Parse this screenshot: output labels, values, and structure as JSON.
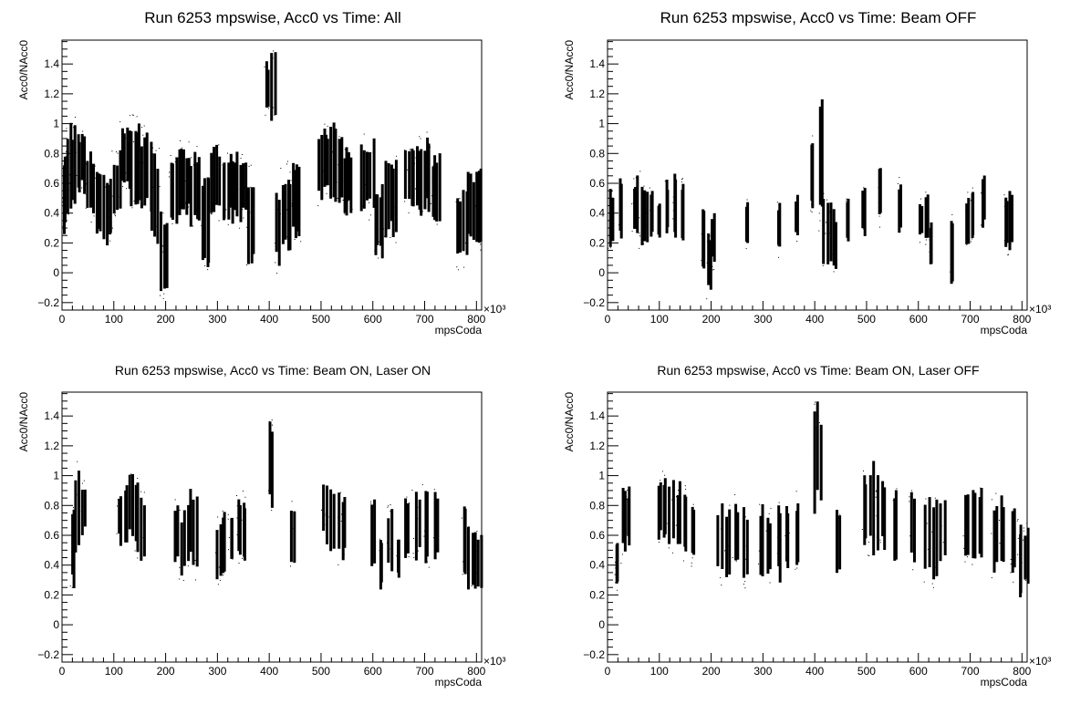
{
  "chart_data": [
    {
      "type": "scatter",
      "title": "Run 6253 mpswise, Acc0 vs Time: All",
      "xlabel": "mpsCoda",
      "ylabel": "Acc0/NAcc0",
      "x_multiplier": "×10³",
      "xlim": [
        0,
        810
      ],
      "ylim": [
        -0.25,
        1.56
      ],
      "x_ticks": [
        "0",
        "100",
        "200",
        "300",
        "400",
        "500",
        "600",
        "700",
        "800"
      ],
      "y_ticks": [
        "−0.2",
        "0",
        "0.2",
        "0.4",
        "0.6",
        "0.8",
        "1",
        "1.2",
        "1.4"
      ],
      "x_tick_values": [
        0,
        100,
        200,
        300,
        400,
        500,
        600,
        700,
        800
      ],
      "y_tick_values": [
        -0.2,
        0,
        0.2,
        0.4,
        0.6,
        0.8,
        1,
        1.2,
        1.4
      ],
      "series": [
        {
          "bands": [
            [
              0,
              5,
              0.2,
              0.85
            ],
            [
              5,
              25,
              0.35,
              1.05
            ],
            [
              25,
              45,
              0.5,
              1.0
            ],
            [
              45,
              60,
              0.3,
              0.85
            ],
            [
              60,
              75,
              0.2,
              0.75
            ],
            [
              75,
              95,
              0.15,
              0.7
            ],
            [
              95,
              110,
              0.3,
              0.85
            ],
            [
              110,
              130,
              0.5,
              1.05
            ],
            [
              130,
              150,
              0.4,
              1.1
            ],
            [
              150,
              170,
              0.35,
              1.0
            ],
            [
              170,
              188,
              0.15,
              0.85
            ],
            [
              188,
              205,
              -0.2,
              0.45
            ],
            [
              205,
              220,
              0.3,
              0.8
            ],
            [
              220,
              245,
              0.35,
              0.9
            ],
            [
              245,
              265,
              0.25,
              0.85
            ],
            [
              265,
              285,
              0.0,
              0.7
            ],
            [
              285,
              305,
              0.35,
              0.9
            ],
            [
              305,
              330,
              0.3,
              0.85
            ],
            [
              330,
              355,
              0.3,
              0.85
            ],
            [
              355,
              370,
              0.0,
              0.75
            ],
            [
              390,
              400,
              1.05,
              1.45
            ],
            [
              400,
              410,
              0.95,
              1.55
            ],
            [
              410,
              420,
              0.0,
              0.6
            ],
            [
              420,
              440,
              0.1,
              0.75
            ],
            [
              440,
              460,
              0.2,
              0.8
            ],
            [
              490,
              515,
              0.45,
              1.0
            ],
            [
              515,
              540,
              0.4,
              1.05
            ],
            [
              540,
              560,
              0.35,
              0.9
            ],
            [
              575,
              600,
              0.35,
              0.95
            ],
            [
              600,
              620,
              0.05,
              0.65
            ],
            [
              620,
              645,
              0.2,
              0.8
            ],
            [
              660,
              685,
              0.4,
              0.9
            ],
            [
              685,
              710,
              0.35,
              0.95
            ],
            [
              710,
              730,
              0.3,
              0.85
            ],
            [
              760,
              780,
              0.0,
              0.6
            ],
            [
              780,
              810,
              0.15,
              0.75
            ]
          ]
        }
      ],
      "grid": false
    },
    {
      "type": "scatter",
      "title": "Run 6253 mpswise, Acc0 vs Time: Beam OFF",
      "xlabel": "mpsCoda",
      "ylabel": "Acc0/NAcc0",
      "x_multiplier": "×10³",
      "xlim": [
        0,
        810
      ],
      "ylim": [
        -0.25,
        1.56
      ],
      "x_ticks": [
        "0",
        "100",
        "200",
        "300",
        "400",
        "500",
        "600",
        "700",
        "800"
      ],
      "y_ticks": [
        "−0.2",
        "0",
        "0.2",
        "0.4",
        "0.6",
        "0.8",
        "1",
        "1.2",
        "1.4"
      ],
      "x_tick_values": [
        0,
        100,
        200,
        300,
        400,
        500,
        600,
        700,
        800
      ],
      "y_tick_values": [
        -0.2,
        0,
        0.2,
        0.4,
        0.6,
        0.8,
        1,
        1.2,
        1.4
      ],
      "series": [
        {
          "bands": [
            [
              0,
              8,
              0.15,
              0.6
            ],
            [
              20,
              25,
              0.15,
              0.7
            ],
            [
              45,
              55,
              0.2,
              0.65
            ],
            [
              55,
              65,
              0.15,
              0.7
            ],
            [
              65,
              75,
              0.15,
              0.6
            ],
            [
              80,
              85,
              0.2,
              0.6
            ],
            [
              95,
              100,
              0.2,
              0.5
            ],
            [
              110,
              115,
              0.2,
              0.65
            ],
            [
              125,
              130,
              0.2,
              0.7
            ],
            [
              140,
              145,
              0.15,
              0.65
            ],
            [
              180,
              185,
              0.0,
              0.5
            ],
            [
              190,
              198,
              -0.2,
              0.35
            ],
            [
              198,
              205,
              0.0,
              0.45
            ],
            [
              265,
              270,
              0.15,
              0.5
            ],
            [
              325,
              330,
              0.1,
              0.5
            ],
            [
              360,
              365,
              0.2,
              0.55
            ],
            [
              390,
              395,
              0.4,
              0.95
            ],
            [
              407,
              412,
              0.2,
              1.25
            ],
            [
              412,
              430,
              0.0,
              0.6
            ],
            [
              430,
              440,
              0.0,
              0.45
            ],
            [
              460,
              463,
              0.15,
              0.55
            ],
            [
              490,
              495,
              0.2,
              0.6
            ],
            [
              520,
              525,
              0.3,
              0.75
            ],
            [
              560,
              565,
              0.2,
              0.65
            ],
            [
              600,
              605,
              0.2,
              0.5
            ],
            [
              610,
              618,
              0.15,
              0.55
            ],
            [
              620,
              625,
              0.0,
              0.4
            ],
            [
              660,
              665,
              -0.1,
              0.4
            ],
            [
              690,
              695,
              0.15,
              0.55
            ],
            [
              700,
              705,
              0.2,
              0.6
            ],
            [
              720,
              725,
              0.25,
              0.75
            ],
            [
              765,
              770,
              0.1,
              0.55
            ],
            [
              770,
              780,
              0.1,
              0.6
            ]
          ]
        }
      ],
      "grid": false
    },
    {
      "type": "scatter",
      "title": "Run 6253 mpswise, Acc0 vs Time: Beam ON, Laser ON",
      "xlabel": "mpsCoda",
      "ylabel": "Acc0/NAcc0",
      "x_multiplier": "×10³",
      "xlim": [
        0,
        810
      ],
      "ylim": [
        -0.25,
        1.56
      ],
      "x_ticks": [
        "0",
        "100",
        "200",
        "300",
        "400",
        "500",
        "600",
        "700",
        "800"
      ],
      "y_ticks": [
        "−0.2",
        "0",
        "0.2",
        "0.4",
        "0.6",
        "0.8",
        "1",
        "1.2",
        "1.4"
      ],
      "x_tick_values": [
        0,
        100,
        200,
        300,
        400,
        500,
        600,
        700,
        800
      ],
      "y_tick_values": [
        -0.2,
        0,
        0.2,
        0.4,
        0.6,
        0.8,
        1,
        1.2,
        1.4
      ],
      "series": [
        {
          "bands": [
            [
              15,
              22,
              0.2,
              0.85
            ],
            [
              22,
              30,
              0.45,
              1.1
            ],
            [
              35,
              42,
              0.55,
              1.0
            ],
            [
              105,
              112,
              0.5,
              0.95
            ],
            [
              120,
              125,
              0.5,
              1.0
            ],
            [
              128,
              135,
              0.55,
              1.1
            ],
            [
              140,
              145,
              0.45,
              1.0
            ],
            [
              150,
              160,
              0.35,
              0.9
            ],
            [
              215,
              225,
              0.35,
              0.85
            ],
            [
              225,
              235,
              0.3,
              0.8
            ],
            [
              240,
              248,
              0.35,
              0.95
            ],
            [
              250,
              262,
              0.3,
              0.9
            ],
            [
              295,
              305,
              0.25,
              0.75
            ],
            [
              305,
              315,
              0.3,
              0.8
            ],
            [
              320,
              330,
              0.35,
              0.8
            ],
            [
              335,
              345,
              0.4,
              0.9
            ],
            [
              345,
              355,
              0.35,
              0.9
            ],
            [
              395,
              408,
              0.75,
              1.42
            ],
            [
              440,
              448,
              0.3,
              0.85
            ],
            [
              500,
              510,
              0.5,
              1.05
            ],
            [
              515,
              525,
              0.45,
              1.0
            ],
            [
              530,
              545,
              0.4,
              0.95
            ],
            [
              595,
              605,
              0.35,
              0.9
            ],
            [
              610,
              618,
              0.2,
              0.6
            ],
            [
              625,
              635,
              0.3,
              0.85
            ],
            [
              645,
              650,
              0.3,
              0.6
            ],
            [
              660,
              670,
              0.4,
              0.9
            ],
            [
              675,
              688,
              0.4,
              0.95
            ],
            [
              695,
              708,
              0.35,
              0.95
            ],
            [
              715,
              725,
              0.4,
              0.95
            ],
            [
              770,
              780,
              0.3,
              0.85
            ],
            [
              780,
              792,
              0.2,
              0.7
            ],
            [
              795,
              810,
              0.15,
              0.65
            ]
          ]
        }
      ],
      "grid": false
    },
    {
      "type": "scatter",
      "title": "Run 6253 mpswise, Acc0 vs Time: Beam ON, Laser OFF",
      "xlabel": "mpsCoda",
      "ylabel": "Acc0/NAcc0",
      "x_multiplier": "×10³",
      "xlim": [
        0,
        810
      ],
      "ylim": [
        -0.25,
        1.56
      ],
      "x_ticks": [
        "0",
        "100",
        "200",
        "300",
        "400",
        "500",
        "600",
        "700",
        "800"
      ],
      "y_ticks": [
        "−0.2",
        "0",
        "0.2",
        "0.4",
        "0.6",
        "0.8",
        "1",
        "1.2",
        "1.4"
      ],
      "x_tick_values": [
        0,
        100,
        200,
        300,
        400,
        500,
        600,
        700,
        800
      ],
      "y_tick_values": [
        -0.2,
        0,
        0.2,
        0.4,
        0.6,
        0.8,
        1,
        1.2,
        1.4
      ],
      "series": [
        {
          "bands": [
            [
              12,
              20,
              0.2,
              0.65
            ],
            [
              25,
              32,
              0.4,
              1.0
            ],
            [
              35,
              40,
              0.5,
              0.95
            ],
            [
              95,
              102,
              0.5,
              1.05
            ],
            [
              105,
              112,
              0.5,
              1.05
            ],
            [
              115,
              125,
              0.45,
              1.0
            ],
            [
              130,
              138,
              0.45,
              1.0
            ],
            [
              145,
              150,
              0.4,
              0.95
            ],
            [
              160,
              168,
              0.35,
              0.9
            ],
            [
              210,
              220,
              0.25,
              0.85
            ],
            [
              225,
              235,
              0.25,
              0.85
            ],
            [
              240,
              250,
              0.3,
              0.9
            ],
            [
              260,
              270,
              0.25,
              0.85
            ],
            [
              290,
              300,
              0.25,
              0.85
            ],
            [
              305,
              315,
              0.25,
              0.8
            ],
            [
              325,
              335,
              0.25,
              0.85
            ],
            [
              340,
              350,
              0.3,
              0.85
            ],
            [
              360,
              368,
              0.35,
              0.9
            ],
            [
              395,
              410,
              0.7,
              1.55
            ],
            [
              440,
              450,
              0.25,
              0.8
            ],
            [
              490,
              505,
              0.45,
              1.05
            ],
            [
              510,
              520,
              0.4,
              1.15
            ],
            [
              525,
              535,
              0.45,
              1.05
            ],
            [
              550,
              558,
              0.4,
              0.95
            ],
            [
              580,
              590,
              0.35,
              0.95
            ],
            [
              610,
              620,
              0.25,
              0.9
            ],
            [
              625,
              635,
              0.25,
              0.9
            ],
            [
              640,
              650,
              0.35,
              0.95
            ],
            [
              685,
              695,
              0.4,
              0.95
            ],
            [
              700,
              708,
              0.35,
              0.95
            ],
            [
              715,
              722,
              0.4,
              0.95
            ],
            [
              740,
              750,
              0.3,
              0.9
            ],
            [
              755,
              765,
              0.35,
              0.9
            ],
            [
              775,
              785,
              0.25,
              0.85
            ],
            [
              790,
              800,
              0.15,
              0.75
            ],
            [
              800,
              810,
              0.2,
              0.7
            ]
          ]
        }
      ],
      "grid": false
    }
  ]
}
